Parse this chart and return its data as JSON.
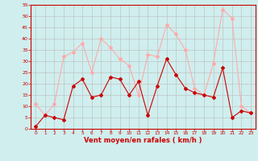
{
  "x": [
    0,
    1,
    2,
    3,
    4,
    5,
    6,
    7,
    8,
    9,
    10,
    11,
    12,
    13,
    14,
    15,
    16,
    17,
    18,
    19,
    20,
    21,
    22,
    23
  ],
  "wind_avg": [
    1,
    6,
    5,
    4,
    19,
    22,
    14,
    15,
    23,
    22,
    15,
    21,
    6,
    19,
    31,
    24,
    18,
    16,
    15,
    14,
    27,
    5,
    8,
    7
  ],
  "wind_gust": [
    11,
    6,
    11,
    32,
    34,
    38,
    25,
    40,
    36,
    31,
    28,
    15,
    33,
    32,
    46,
    42,
    35,
    18,
    15,
    29,
    53,
    49,
    10,
    7
  ],
  "color_avg": "#cc0000",
  "color_gust": "#ffaaaa",
  "bg_color": "#d0eeee",
  "grid_color": "#bbbbbb",
  "xlabel": "Vent moyen/en rafales ( km/h )",
  "ylim": [
    0,
    55
  ],
  "xlim": [
    -0.5,
    23.5
  ],
  "yticks": [
    0,
    5,
    10,
    15,
    20,
    25,
    30,
    35,
    40,
    45,
    50,
    55
  ],
  "xticks": [
    0,
    1,
    2,
    3,
    4,
    5,
    6,
    7,
    8,
    9,
    10,
    11,
    12,
    13,
    14,
    15,
    16,
    17,
    18,
    19,
    20,
    21,
    22,
    23
  ],
  "tick_color": "#cc0000",
  "label_color": "#cc0000",
  "axis_color": "#cc0000"
}
